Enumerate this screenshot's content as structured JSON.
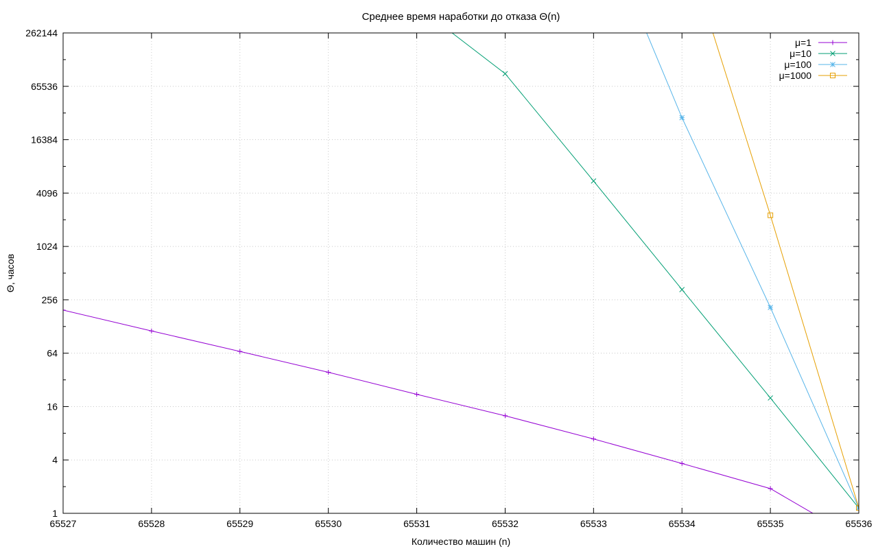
{
  "chart_data": {
    "type": "line",
    "title": "Среднее время наработки до отказа Θ(n)",
    "xlabel": "Количество машин (n)",
    "ylabel": "Θ, часов",
    "xlim": [
      65527,
      65536
    ],
    "ylim": [
      1,
      262144
    ],
    "yscale": "log2",
    "x_ticks": [
      65527,
      65528,
      65529,
      65530,
      65531,
      65532,
      65533,
      65534,
      65535,
      65536
    ],
    "y_ticks": [
      1,
      4,
      16,
      64,
      256,
      1024,
      4096,
      16384,
      65536,
      262144
    ],
    "grid": true,
    "legend_position": "top-right",
    "series": [
      {
        "name": "μ=1",
        "color": "#9400d3",
        "marker": "plus",
        "x": [
          65527,
          65528,
          65529,
          65530,
          65531,
          65532,
          65533,
          65534,
          65535,
          65536
        ],
        "y": [
          196,
          114,
          67,
          39,
          22,
          12.6,
          6.9,
          3.65,
          1.9,
          0.5
        ]
      },
      {
        "name": "μ=10",
        "color": "#009e73",
        "marker": "cross",
        "x": [
          65531.4,
          65532,
          65533,
          65534,
          65535,
          65536
        ],
        "y": [
          262144,
          91000,
          5600,
          334,
          20,
          1.15
        ]
      },
      {
        "name": "μ=100",
        "color": "#56b4e9",
        "marker": "star",
        "x": [
          65533.6,
          65534,
          65535,
          65536
        ],
        "y": [
          262144,
          29000,
          210,
          1.15
        ]
      },
      {
        "name": "μ=1000",
        "color": "#e69f00",
        "marker": "square",
        "x": [
          65534.35,
          65535,
          65536
        ],
        "y": [
          262144,
          2300,
          1.15
        ]
      }
    ]
  }
}
